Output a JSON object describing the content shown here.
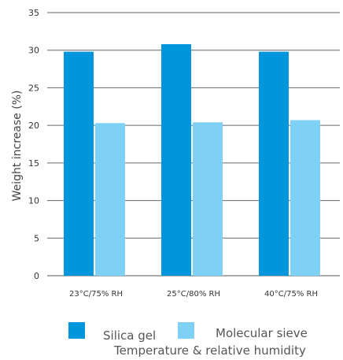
{
  "chart_data": {
    "type": "bar",
    "categories": [
      "23°C/75% RH",
      "25°C/80% RH",
      "40°C/75% RH"
    ],
    "series": [
      {
        "name": "Silica gel",
        "values": [
          29.8,
          30.8,
          29.8
        ],
        "color": "#0096DB"
      },
      {
        "name": "Molecular sieve",
        "values": [
          20.3,
          20.4,
          20.7
        ],
        "color": "#7FD0F5"
      }
    ],
    "title": "",
    "xlabel": "Temperature & relative humidity",
    "ylabel": "Weight increase (%)",
    "ylim": [
      0,
      35
    ],
    "yticks": [
      0,
      5,
      10,
      15,
      20,
      25,
      30,
      35
    ],
    "grid": true,
    "legend_position": "bottom"
  }
}
